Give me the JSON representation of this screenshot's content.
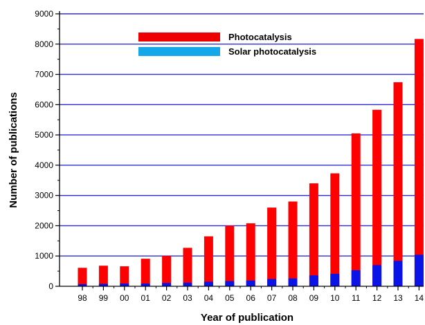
{
  "chart_data": {
    "type": "bar",
    "stacked": true,
    "title": "",
    "xlabel": "Year of publication",
    "ylabel": "Number of publications",
    "ylim": [
      0,
      9000
    ],
    "yticks": [
      0,
      1000,
      2000,
      3000,
      4000,
      5000,
      6000,
      7000,
      8000,
      9000
    ],
    "grid": "horizontal",
    "legend_position": "top-left",
    "categories": [
      "98",
      "99",
      "00",
      "01",
      "02",
      "03",
      "04",
      "05",
      "06",
      "07",
      "08",
      "09",
      "10",
      "11",
      "12",
      "13",
      "14"
    ],
    "series": [
      {
        "name": "Photocatalysis",
        "color": "#ff0000",
        "legend_color": "#ee0000",
        "values": [
          610,
          680,
          660,
          910,
          1000,
          1270,
          1650,
          2000,
          2080,
          2600,
          2800,
          3400,
          3730,
          5050,
          5830,
          6740,
          8170
        ]
      },
      {
        "name": "Solar photocatalysis",
        "color": "#0a14e6",
        "legend_color": "#14a8ea",
        "values": [
          70,
          80,
          90,
          90,
          110,
          120,
          150,
          170,
          190,
          240,
          260,
          360,
          410,
          530,
          700,
          840,
          1040
        ]
      }
    ],
    "colors": {
      "gridline": "#2b2bdb",
      "axis": "#000000"
    }
  }
}
